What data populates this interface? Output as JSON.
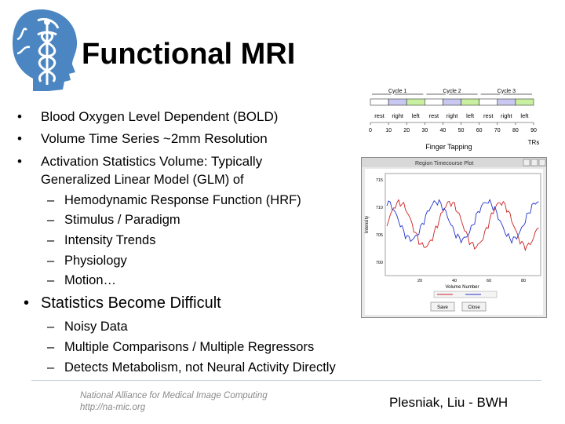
{
  "slide": {
    "title": "Functional MRI",
    "bullets": [
      {
        "text": "Blood Oxygen Level Dependent (BOLD)"
      },
      {
        "text": "Volume Time Series ~2mm Resolution"
      },
      {
        "text": "Activation Statistics Volume: Typically"
      }
    ],
    "glm_line": "Generalized Linear Model (GLM) of",
    "glm_items": [
      "Hemodynamic Response Function (HRF)",
      "Stimulus / Paradigm",
      "Intensity Trends",
      "Physiology",
      "Motion…"
    ],
    "bullet4": "Statistics Become Difficult",
    "difficult_items": [
      "Noisy Data",
      "Multiple Comparisons / Multiple Regressors",
      "Detects Metabolism, not Neural Activity Directly"
    ],
    "dash": "–",
    "dot": "•"
  },
  "timeline": {
    "cycles": [
      "Cycle 1",
      "Cycle 2",
      "Cycle 3"
    ],
    "conditions": [
      "rest",
      "right",
      "left",
      "rest",
      "right",
      "left",
      "rest",
      "right",
      "left"
    ],
    "ticks": [
      "0",
      "10",
      "20",
      "30",
      "40",
      "50",
      "60",
      "70",
      "80",
      "90"
    ],
    "caption": "Finger Tapping",
    "unit": "TRs",
    "colors": {
      "rest": "#ffffff",
      "right": "#c8c8f0",
      "left": "#c8f0a0"
    }
  },
  "plot_window": {
    "title": "Region Timecourse Plot",
    "ylabel": "Intensity",
    "xlabel": "Volume Number",
    "yticks": [
      "715",
      "710",
      "705",
      "700"
    ],
    "xticks": [
      "20",
      "40",
      "60",
      "80"
    ],
    "save_label": "Save",
    "close_label": "Close",
    "series_colors": [
      "#cc2222",
      "#2233cc"
    ]
  },
  "footer": {
    "org": "National Alliance for Medical Image Computing",
    "url": "http://na-mic.org",
    "author": "Plesniak, Liu - BWH"
  }
}
